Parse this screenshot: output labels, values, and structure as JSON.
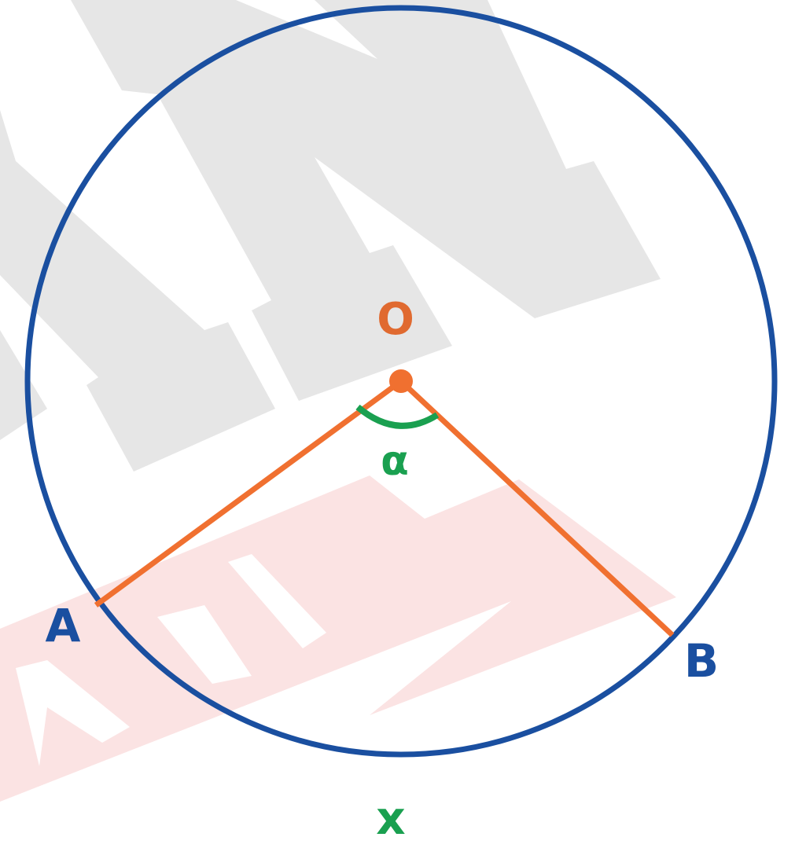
{
  "labels": {
    "center": "O",
    "angle": "α",
    "point_a": "A",
    "point_b": "B",
    "bottom": "x"
  }
}
